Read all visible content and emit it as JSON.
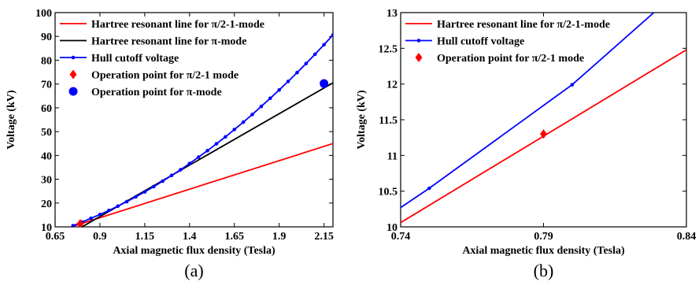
{
  "chart_data": [
    {
      "type": "line",
      "caption": "(a)",
      "xlabel": "Axial magnetic flux density (Tesla)",
      "ylabel": "Voltage (kV)",
      "xlim": [
        0.65,
        2.2
      ],
      "ylim": [
        10,
        100
      ],
      "xticks": [
        0.65,
        0.9,
        1.15,
        1.4,
        1.65,
        1.9,
        2.15
      ],
      "xtick_labels": [
        "0.65",
        "0.9",
        "1.15",
        "1.4",
        "1.65",
        "1.9",
        "2.15"
      ],
      "yticks": [
        10,
        20,
        30,
        40,
        50,
        60,
        70,
        80,
        90,
        100
      ],
      "ytick_labels": [
        "10",
        "20",
        "30",
        "40",
        "50",
        "60",
        "70",
        "80",
        "90",
        "100"
      ],
      "legend_position": "top-left",
      "series": [
        {
          "name": "Hartree resonant line for π/2-1-mode",
          "kind": "line",
          "color": "#ff0000",
          "x": [
            0.74,
            2.2
          ],
          "y": [
            10.0,
            45.0
          ]
        },
        {
          "name": "Hartree resonant line for π-mode",
          "kind": "line",
          "color": "#000000",
          "x": [
            0.8,
            2.2
          ],
          "y": [
            10.0,
            70.5
          ]
        },
        {
          "name": "Hull cutoff voltage",
          "kind": "line-marker",
          "color": "#0000ff",
          "x": [
            0.75,
            0.8,
            0.85,
            0.9,
            0.95,
            1.0,
            1.05,
            1.1,
            1.15,
            1.2,
            1.25,
            1.3,
            1.35,
            1.4,
            1.45,
            1.5,
            1.55,
            1.6,
            1.65,
            1.7,
            1.75,
            1.8,
            1.85,
            1.9,
            1.95,
            2.0,
            2.05,
            2.1,
            2.15,
            2.2
          ],
          "y": [
            10.5,
            12.0,
            13.6,
            15.2,
            16.9,
            18.7,
            20.6,
            22.6,
            24.7,
            26.9,
            29.2,
            31.6,
            34.0,
            36.6,
            39.3,
            42.0,
            44.9,
            47.8,
            50.9,
            54.0,
            57.2,
            60.6,
            64.0,
            67.5,
            71.1,
            74.8,
            78.6,
            82.5,
            86.5,
            90.6
          ]
        },
        {
          "name": "Operation point for π/2-1 mode",
          "kind": "point",
          "marker": "diamond",
          "color": "#ff0000",
          "x": [
            0.79
          ],
          "y": [
            11.3
          ]
        },
        {
          "name": "Operation point for π-mode",
          "kind": "point",
          "marker": "circle",
          "color": "#0000ff",
          "x": [
            2.15
          ],
          "y": [
            70.2
          ]
        }
      ]
    },
    {
      "type": "line",
      "caption": "(b)",
      "xlabel": "Axial magnetic flux density (Tesla)",
      "ylabel": "Voltage (kV)",
      "xlim": [
        0.74,
        0.84
      ],
      "ylim": [
        10,
        13
      ],
      "xticks": [
        0.74,
        0.79,
        0.84
      ],
      "xtick_labels": [
        "0.74",
        "0.79",
        "0.84"
      ],
      "yticks": [
        10,
        10.5,
        11,
        11.5,
        12,
        12.5,
        13
      ],
      "ytick_labels": [
        "10",
        "10.5",
        "11",
        "11.5",
        "12",
        "12.5",
        "13"
      ],
      "legend_position": "top-left",
      "series": [
        {
          "name": "Hartree resonant line for π/2-1-mode",
          "kind": "line",
          "color": "#ff0000",
          "x": [
            0.74,
            0.84
          ],
          "y": [
            10.06,
            12.48
          ]
        },
        {
          "name": "Hull cutoff voltage",
          "kind": "line-marker",
          "color": "#0000ff",
          "x": [
            0.74,
            0.75,
            0.8,
            0.8286
          ],
          "y": [
            10.27,
            10.54,
            11.99,
            13.0
          ],
          "marker_x": [
            0.75,
            0.8
          ],
          "marker_y": [
            10.54,
            11.99
          ]
        },
        {
          "name": "Operation point for π/2-1 mode",
          "kind": "point",
          "marker": "diamond",
          "color": "#ff0000",
          "x": [
            0.79
          ],
          "y": [
            11.3
          ]
        }
      ]
    }
  ]
}
